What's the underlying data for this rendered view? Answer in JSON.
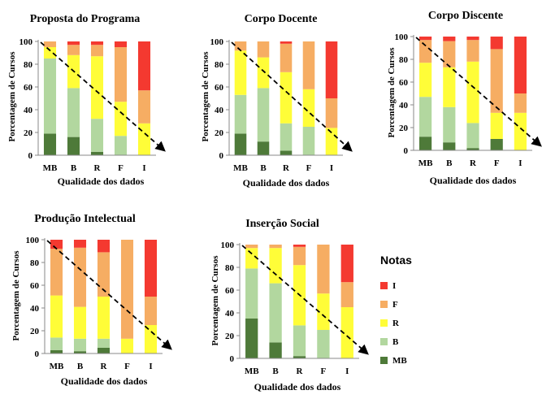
{
  "colors": {
    "MB": "#4e7a39",
    "B": "#b2d79f",
    "R": "#fffd38",
    "F": "#f6ad63",
    "I": "#f43930"
  },
  "legend": {
    "title": "Notas",
    "items": [
      {
        "key": "I",
        "label": "I"
      },
      {
        "key": "F",
        "label": "F"
      },
      {
        "key": "R",
        "label": "R"
      },
      {
        "key": "B",
        "label": "B"
      },
      {
        "key": "MB",
        "label": "MB"
      }
    ]
  },
  "chart_data": [
    {
      "type": "bar",
      "stacked": true,
      "title": "Proposta do Programa",
      "xlabel": "Qualidade dos dados",
      "ylabel": "Porcentagem de Cursos",
      "ylim": [
        0,
        100
      ],
      "yticks": [
        0,
        20,
        40,
        60,
        80,
        100
      ],
      "categories": [
        "MB",
        "B",
        "R",
        "F",
        "I"
      ],
      "series": [
        {
          "name": "MB",
          "values": [
            19,
            16,
            3,
            0,
            0
          ]
        },
        {
          "name": "B",
          "values": [
            66,
            43,
            29,
            17,
            0
          ]
        },
        {
          "name": "R",
          "values": [
            10,
            29,
            55,
            30,
            28
          ]
        },
        {
          "name": "F",
          "values": [
            5,
            9,
            10,
            48,
            29
          ]
        },
        {
          "name": "I",
          "values": [
            0,
            3,
            3,
            5,
            43
          ]
        }
      ]
    },
    {
      "type": "bar",
      "stacked": true,
      "title": "Corpo Docente",
      "xlabel": "Qualidade dos dados",
      "ylabel": "Porcentagem de Cursos",
      "ylim": [
        0,
        100
      ],
      "yticks": [
        0,
        20,
        40,
        60,
        80,
        100
      ],
      "categories": [
        "MB",
        "B",
        "R",
        "F",
        "I"
      ],
      "series": [
        {
          "name": "MB",
          "values": [
            19,
            12,
            4,
            0,
            0
          ]
        },
        {
          "name": "B",
          "values": [
            34,
            47,
            24,
            25,
            0
          ]
        },
        {
          "name": "R",
          "values": [
            39,
            27,
            45,
            33,
            24
          ]
        },
        {
          "name": "F",
          "values": [
            8,
            14,
            25,
            42,
            26
          ]
        },
        {
          "name": "I",
          "values": [
            0,
            0,
            2,
            0,
            50
          ]
        }
      ]
    },
    {
      "type": "bar",
      "stacked": true,
      "title": "Corpo Discente",
      "xlabel": "Qualidade dos dados",
      "ylabel": "Porcentagem de Cursos",
      "ylim": [
        0,
        100
      ],
      "yticks": [
        0,
        20,
        40,
        60,
        80,
        100
      ],
      "categories": [
        "MB",
        "B",
        "R",
        "F",
        "I"
      ],
      "series": [
        {
          "name": "MB",
          "values": [
            12,
            7,
            2,
            10,
            0
          ]
        },
        {
          "name": "B",
          "values": [
            35,
            31,
            22,
            0,
            0
          ]
        },
        {
          "name": "R",
          "values": [
            30,
            35,
            54,
            23,
            33
          ]
        },
        {
          "name": "F",
          "values": [
            20,
            23,
            19,
            56,
            17
          ]
        },
        {
          "name": "I",
          "values": [
            3,
            4,
            3,
            11,
            50
          ]
        }
      ]
    },
    {
      "type": "bar",
      "stacked": true,
      "title": "Produção Intelectual",
      "xlabel": "Qualidade dos dados",
      "ylabel": "Porcentagem de Cursos",
      "ylim": [
        0,
        100
      ],
      "yticks": [
        0,
        20,
        40,
        60,
        80,
        100
      ],
      "categories": [
        "MB",
        "B",
        "R",
        "F",
        "I"
      ],
      "series": [
        {
          "name": "MB",
          "values": [
            3,
            2,
            5,
            0,
            0
          ]
        },
        {
          "name": "B",
          "values": [
            11,
            11,
            8,
            0,
            0
          ]
        },
        {
          "name": "R",
          "values": [
            37,
            28,
            37,
            13,
            25
          ]
        },
        {
          "name": "F",
          "values": [
            41,
            52,
            39,
            87,
            25
          ]
        },
        {
          "name": "I",
          "values": [
            8,
            7,
            11,
            0,
            50
          ]
        }
      ]
    },
    {
      "type": "bar",
      "stacked": true,
      "title": "Inserção Social",
      "xlabel": "Qualidade dos dados",
      "ylabel": "Porcentagem de Cursos",
      "ylim": [
        0,
        100
      ],
      "yticks": [
        0,
        20,
        40,
        60,
        80,
        100
      ],
      "categories": [
        "MB",
        "B",
        "R",
        "F",
        "I"
      ],
      "series": [
        {
          "name": "MB",
          "values": [
            35,
            14,
            2,
            0,
            0
          ]
        },
        {
          "name": "B",
          "values": [
            44,
            52,
            27,
            25,
            0
          ]
        },
        {
          "name": "R",
          "values": [
            18,
            31,
            53,
            32,
            45
          ]
        },
        {
          "name": "F",
          "values": [
            3,
            3,
            16,
            43,
            22
          ]
        },
        {
          "name": "I",
          "values": [
            0,
            0,
            2,
            0,
            33
          ]
        }
      ]
    }
  ]
}
